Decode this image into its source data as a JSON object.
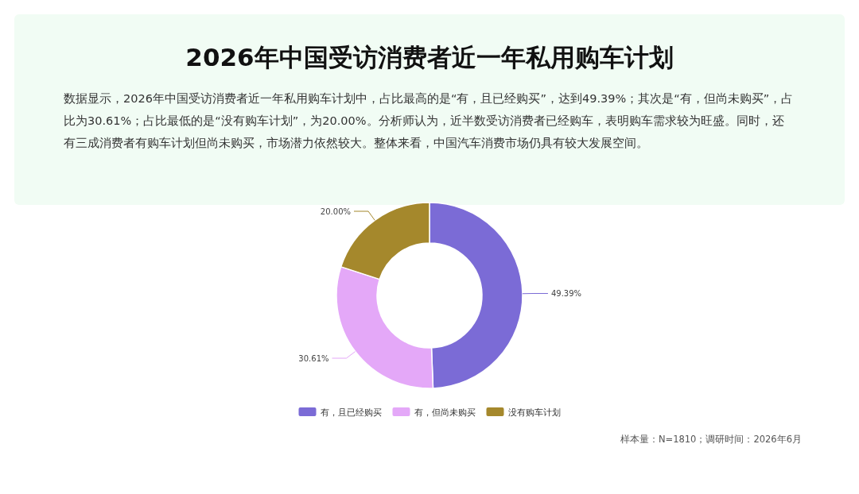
{
  "chart_data": {
    "type": "donut",
    "title": "2026年中国受访消费者近一年私用购车计划",
    "subtitle": "数据显示，2026年中国受访消费者近一年私用购车计划中，占比最高的是“有，且已经购买”，达到49.39%；其次是“有，但尚未购买”，占比为30.61%；占比最低的是“没有购车计划”，为20.00%。分析师认为，近半数受访消费者已经购车，表明购车需求较为旺盛。同时，还有三成消费者有购车计划但尚未购买，市场潜力依然较大。整体来看，中国汽车消费市场仍具有较大发展空间。",
    "categories": [
      "有，且已经购买",
      "有，但尚未购买",
      "没有购车计划"
    ],
    "values": [
      49.39,
      30.61,
      20.0
    ],
    "colors": [
      "#7b6bd6",
      "#e4a8f8",
      "#a5882c"
    ],
    "value_labels": [
      "49.39%",
      "30.61%",
      "20.00%"
    ],
    "legend": "bottom",
    "annotations": [
      "样本量：N=1810；调研时间：2026年6月"
    ]
  }
}
